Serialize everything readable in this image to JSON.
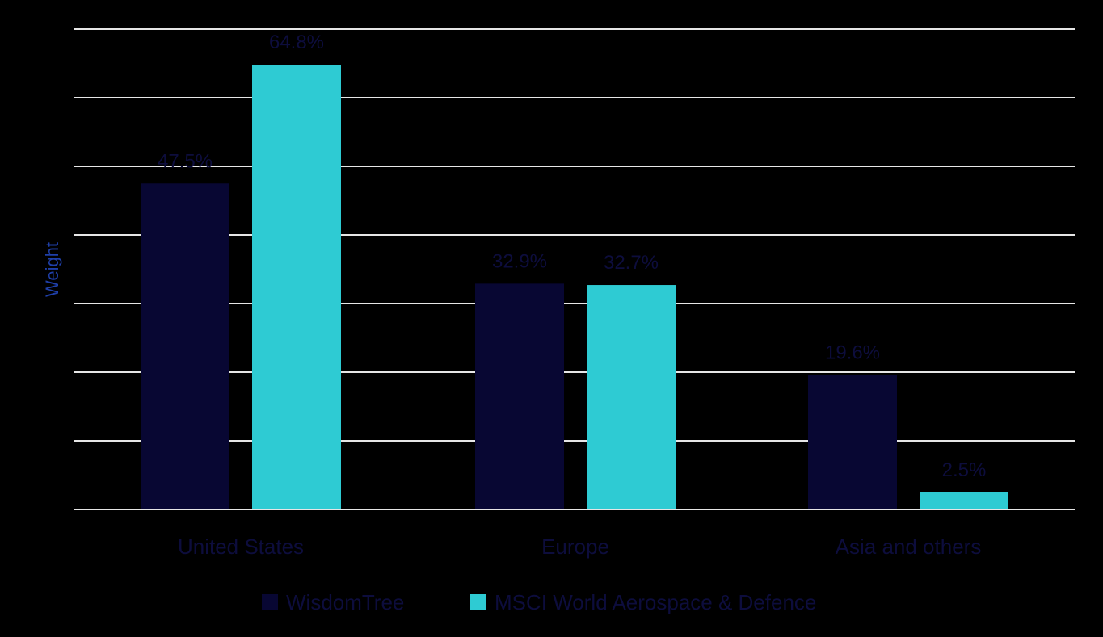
{
  "chart_data": {
    "type": "bar",
    "title": "",
    "xlabel": "",
    "ylabel": "Weight",
    "ylim": [
      0,
      70
    ],
    "grid": true,
    "legend_position": "bottom",
    "categories": [
      "United States",
      "Europe",
      "Asia and others"
    ],
    "series": [
      {
        "name": "WisdomTree",
        "color": "#080733",
        "values": [
          47.5,
          32.9,
          19.6
        ],
        "labels": [
          "47.5%",
          "32.9%",
          "19.6%"
        ]
      },
      {
        "name": "MSCI World Aerospace & Defence",
        "color": "#2ecbd3",
        "values": [
          64.8,
          32.7,
          2.5
        ],
        "labels": [
          "64.8%",
          "32.7%",
          "2.5%"
        ]
      }
    ]
  },
  "colors": {
    "background": "#000000",
    "gridline": "#e6e6e6",
    "axis_label": "#1f3fa8",
    "text": "#0d0d3d"
  }
}
